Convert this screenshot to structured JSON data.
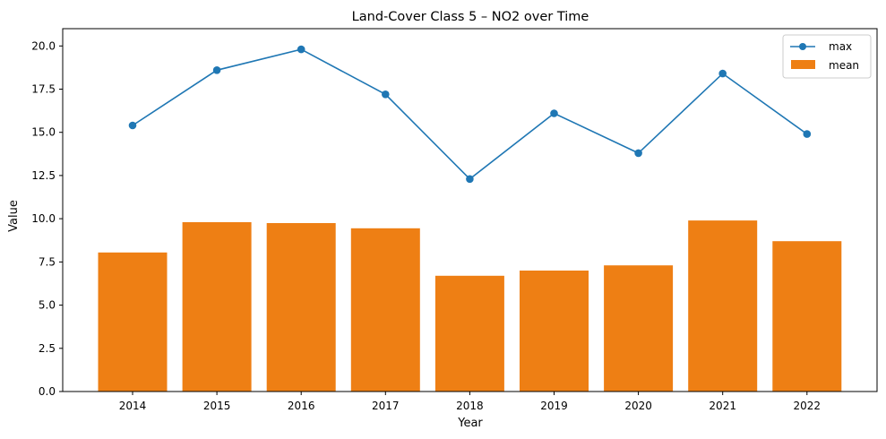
{
  "chart_data": {
    "type": "bar",
    "title": "Land-Cover Class 5 – NO2 over Time",
    "xlabel": "Year",
    "ylabel": "Value",
    "categories": [
      "2014",
      "2015",
      "2016",
      "2017",
      "2018",
      "2019",
      "2020",
      "2021",
      "2022"
    ],
    "ylim": [
      0,
      21
    ],
    "yticks": [
      "0.0",
      "2.5",
      "5.0",
      "7.5",
      "10.0",
      "12.5",
      "15.0",
      "17.5",
      "20.0"
    ],
    "series": [
      {
        "name": "max",
        "type": "line",
        "color": "#1f77b4",
        "marker": "circle",
        "values": [
          15.4,
          18.6,
          19.8,
          17.2,
          12.3,
          16.1,
          13.8,
          18.4,
          14.9
        ]
      },
      {
        "name": "mean",
        "type": "bar",
        "color": "#ee7f14",
        "values": [
          8.05,
          9.8,
          9.75,
          9.45,
          6.7,
          7.0,
          7.3,
          9.9,
          8.7
        ]
      }
    ],
    "legend": {
      "position": "top-right",
      "entries": [
        "max",
        "mean"
      ]
    },
    "grid": false
  }
}
